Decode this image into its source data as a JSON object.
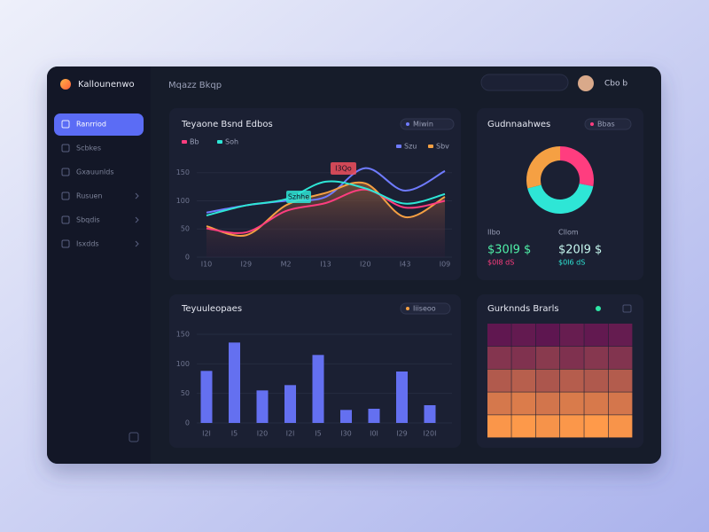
{
  "app": {
    "brand": "Kallounenwo",
    "page_title": "Mqazz Bkqp",
    "user": "Cbo b"
  },
  "nav": [
    "Ranrriod",
    "Scbkes",
    "Gxauunlds",
    "Rusuen",
    "Sbqdis",
    "Isxdds"
  ],
  "line_panel": {
    "type": "line",
    "title": "Teyaone Bsnd Edbos",
    "badge": "Miwin",
    "categories": [
      "I10",
      "I29",
      "M2",
      "I13",
      "I20",
      "I43",
      "I09"
    ],
    "series": [
      {
        "name": "Szu",
        "color": "#6f7bff",
        "values": [
          79,
          92,
          100,
          107,
          158,
          118,
          153
        ]
      },
      {
        "name": "Sbv",
        "color": "#f5a043",
        "values": [
          55,
          39,
          92,
          114,
          131,
          71,
          107
        ]
      },
      {
        "name": "Bb",
        "color": "#ff3d7f",
        "values": [
          51,
          44,
          82,
          96,
          120,
          88,
          100
        ]
      },
      {
        "name": "Soh",
        "color": "#2ee6d6",
        "values": [
          74,
          92,
          103,
          134,
          122,
          95,
          112
        ]
      }
    ],
    "ylim": [
      0,
      170
    ],
    "yticks": [
      0,
      50,
      100,
      150
    ],
    "annotations": [
      "I3Qo",
      "Szhhe"
    ]
  },
  "donut_panel": {
    "type": "pie",
    "title": "Gudnnaahwes",
    "badge": "Bbas",
    "values": [
      28,
      43,
      29
    ],
    "colors": [
      "#ff3d7f",
      "#2ee6d6",
      "#f5a043"
    ],
    "stats": [
      {
        "label": "Ilbo",
        "value": "$30I9 $",
        "note": "$0I8 dS"
      },
      {
        "label": "Cllom",
        "value": "$20I9 $",
        "note": "$0I6 dS"
      }
    ]
  },
  "bar_panel": {
    "type": "bar",
    "title": "Teyuuleopaes",
    "badge": "Iiiseoo",
    "categories": [
      "I2I",
      "I5",
      "I20",
      "I2I",
      "I5",
      "I30",
      "I0I",
      "I29",
      "I20I"
    ],
    "values": [
      88,
      136,
      55,
      64,
      115,
      22,
      24,
      87,
      30
    ],
    "color": "#6470f0",
    "ylim": [
      0,
      150
    ],
    "yticks": [
      0,
      50,
      100,
      150
    ]
  },
  "heat_panel": {
    "type": "heatmap",
    "title": "Gurknnds Brarls",
    "colorscale": [
      "#5e1650",
      "#ff9a4a"
    ],
    "values": [
      [
        10,
        12,
        9,
        14,
        11,
        13
      ],
      [
        30,
        28,
        33,
        27,
        31,
        29
      ],
      [
        55,
        58,
        52,
        57,
        54,
        56
      ],
      [
        75,
        78,
        73,
        77,
        76,
        74
      ],
      [
        95,
        97,
        93,
        96,
        98,
        94
      ]
    ]
  }
}
